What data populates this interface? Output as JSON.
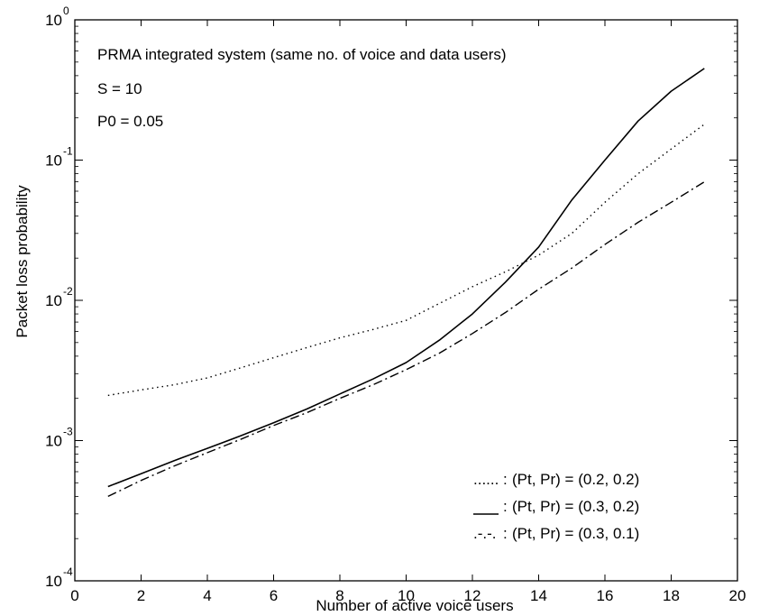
{
  "chart_data": {
    "type": "line",
    "xlabel": "Number of active voice users",
    "ylabel": "Packet loss probability",
    "xlim": [
      0,
      20
    ],
    "ylim": [
      0.0001,
      1
    ],
    "yscale": "log",
    "grid": false,
    "legend_position": "bottom-right",
    "x_ticks": [
      "0",
      "2",
      "4",
      "6",
      "8",
      "10",
      "12",
      "14",
      "16",
      "18",
      "20"
    ],
    "y_ticks": [
      {
        "value": 0.0001,
        "base": "10",
        "exp": "-4"
      },
      {
        "value": 0.001,
        "base": "10",
        "exp": "-3"
      },
      {
        "value": 0.01,
        "base": "10",
        "exp": "-2"
      },
      {
        "value": 0.1,
        "base": "10",
        "exp": "-1"
      },
      {
        "value": 1,
        "base": "10",
        "exp": "0"
      }
    ],
    "annotations": [
      "PRMA integrated system (same no. of voice and data users)",
      "S = 10",
      "P0 = 0.05"
    ],
    "series": [
      {
        "name": "(Pt, Pr) = (0.2, 0.2)",
        "legend_marker": "......",
        "style": "dotted",
        "x": [
          1,
          2,
          3,
          4,
          5,
          6,
          7,
          8,
          9,
          10,
          11,
          12,
          13,
          14,
          15,
          16,
          17,
          18,
          19
        ],
        "y": [
          0.0021,
          0.0023,
          0.0025,
          0.0028,
          0.0033,
          0.0039,
          0.0046,
          0.0054,
          0.0062,
          0.0072,
          0.0095,
          0.0125,
          0.016,
          0.021,
          0.03,
          0.05,
          0.08,
          0.12,
          0.18
        ]
      },
      {
        "name": "(Pt, Pr) = (0.3, 0.2)",
        "legend_marker": "___",
        "style": "solid",
        "x": [
          1,
          2,
          3,
          4,
          5,
          6,
          7,
          8,
          9,
          10,
          11,
          12,
          13,
          14,
          15,
          16,
          17,
          18,
          19
        ],
        "y": [
          0.00047,
          0.00058,
          0.00072,
          0.00088,
          0.00108,
          0.00134,
          0.00168,
          0.00215,
          0.00275,
          0.0036,
          0.0052,
          0.008,
          0.0135,
          0.024,
          0.052,
          0.1,
          0.19,
          0.31,
          0.45
        ]
      },
      {
        "name": "(Pt, Pr) = (0.3, 0.1)",
        "legend_marker": ".-.-.",
        "style": "dashdot",
        "x": [
          1,
          2,
          3,
          4,
          5,
          6,
          7,
          8,
          9,
          10,
          11,
          12,
          13,
          14,
          15,
          16,
          17,
          18,
          19
        ],
        "y": [
          0.0004,
          0.00052,
          0.00066,
          0.00082,
          0.00102,
          0.00128,
          0.00158,
          0.002,
          0.0025,
          0.0032,
          0.0042,
          0.0058,
          0.0082,
          0.012,
          0.017,
          0.025,
          0.036,
          0.05,
          0.07
        ]
      }
    ]
  }
}
